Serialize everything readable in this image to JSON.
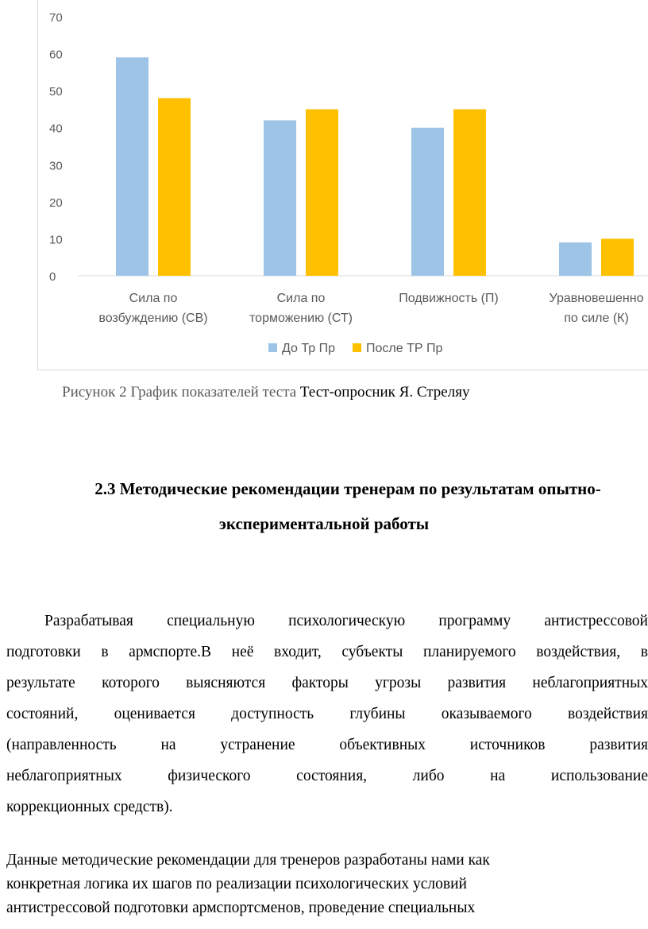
{
  "chart_data": {
    "type": "bar",
    "categories": [
      [
        "Сила по",
        "возбуждению (СВ)"
      ],
      [
        "Сила по",
        "торможению (СТ)"
      ],
      [
        "Подвижность (П)"
      ],
      [
        "Уравновешенно",
        "по силе (К)"
      ]
    ],
    "series": [
      {
        "name": "До Тр Пр",
        "color": "#9dc3e6",
        "values": [
          59,
          42,
          40,
          9
        ]
      },
      {
        "name": "После ТР Пр",
        "color": "#ffc000",
        "values": [
          48,
          45,
          45,
          10
        ]
      }
    ],
    "ylim": [
      0,
      70
    ],
    "yticks": [
      "0",
      "10",
      "20",
      "30",
      "40",
      "50",
      "60",
      "70"
    ],
    "grid": false,
    "legend_position": "bottom"
  },
  "caption": {
    "prefix": "Рисунок 2 График показателей теста ",
    "suffix": "Тест-опросник Я. Стреляу"
  },
  "heading": {
    "line1": "2.3 Методические рекомендации тренерам по результатам опытно-",
    "line2": "экспериментальной работы"
  },
  "paragraph1": {
    "lines": [
      "Разрабатывая специальную  психологическую программу антистрессовой",
      "подготовки в армспорте.В неё входит, субъекты планируемого воздействия, в",
      "результате которого выясняются факторы угрозы развития неблагоприятных",
      "состояний, оценивается доступность глубины оказываемого воздействия",
      "(направленность на устранение объективных источников развития",
      "неблагоприятных физического состояния, либо на использование",
      "коррекционных средств)."
    ]
  },
  "paragraph2": {
    "lines": [
      "Данные методические рекомендации для тренеров разработаны нами как",
      "конкретная логика их шагов по реализации психологических условий",
      "антистрессовой подготовки армспортсменов, проведение специальных"
    ]
  }
}
